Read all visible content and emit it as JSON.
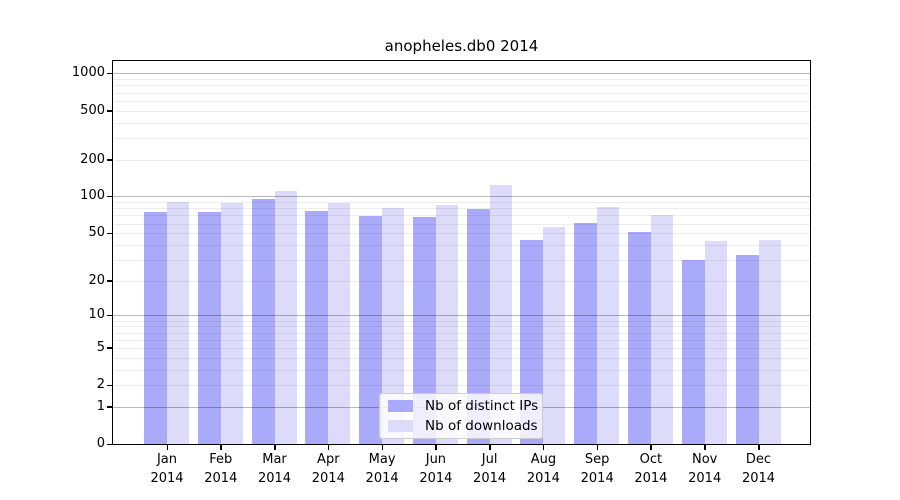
{
  "figure": {
    "title": "anopheles.db0 2014"
  },
  "legend": {
    "items": [
      {
        "label": "Nb of distinct IPs",
        "color": "#aaaafa"
      },
      {
        "label": "Nb of downloads",
        "color": "#dcdcfa"
      }
    ],
    "position": "inside-bottom-center"
  },
  "chart_data": {
    "type": "bar",
    "title": "anopheles.db0 2014",
    "categories": [
      "Jan 2014",
      "Feb 2014",
      "Mar 2014",
      "Apr 2014",
      "May 2014",
      "Jun 2014",
      "Jul 2014",
      "Aug 2014",
      "Sep 2014",
      "Oct 2014",
      "Nov 2014",
      "Dec 2014"
    ],
    "month_labels": [
      "Jan",
      "Feb",
      "Mar",
      "Apr",
      "May",
      "Jun",
      "Jul",
      "Aug",
      "Sep",
      "Oct",
      "Nov",
      "Dec"
    ],
    "year_label": "2014",
    "series": [
      {
        "name": "Nb of distinct IPs",
        "color": "#aaaafa",
        "values": [
          74,
          75,
          96,
          76,
          69,
          68,
          79,
          44,
          61,
          51,
          30,
          33
        ]
      },
      {
        "name": "Nb of downloads",
        "color": "#dcdcfa",
        "values": [
          90,
          88,
          111,
          88,
          80,
          85,
          123,
          56,
          82,
          70,
          43,
          44
        ]
      }
    ],
    "xlabel": "",
    "ylabel": "",
    "y_ticks": [
      0,
      1,
      2,
      5,
      10,
      20,
      50,
      100,
      200,
      500,
      1000
    ],
    "y_scale": "log1p",
    "ylim": [
      0,
      1260
    ],
    "grid": "major-at-powers-of-ten-with-log-minors",
    "legend_position": "inside bottom center"
  }
}
